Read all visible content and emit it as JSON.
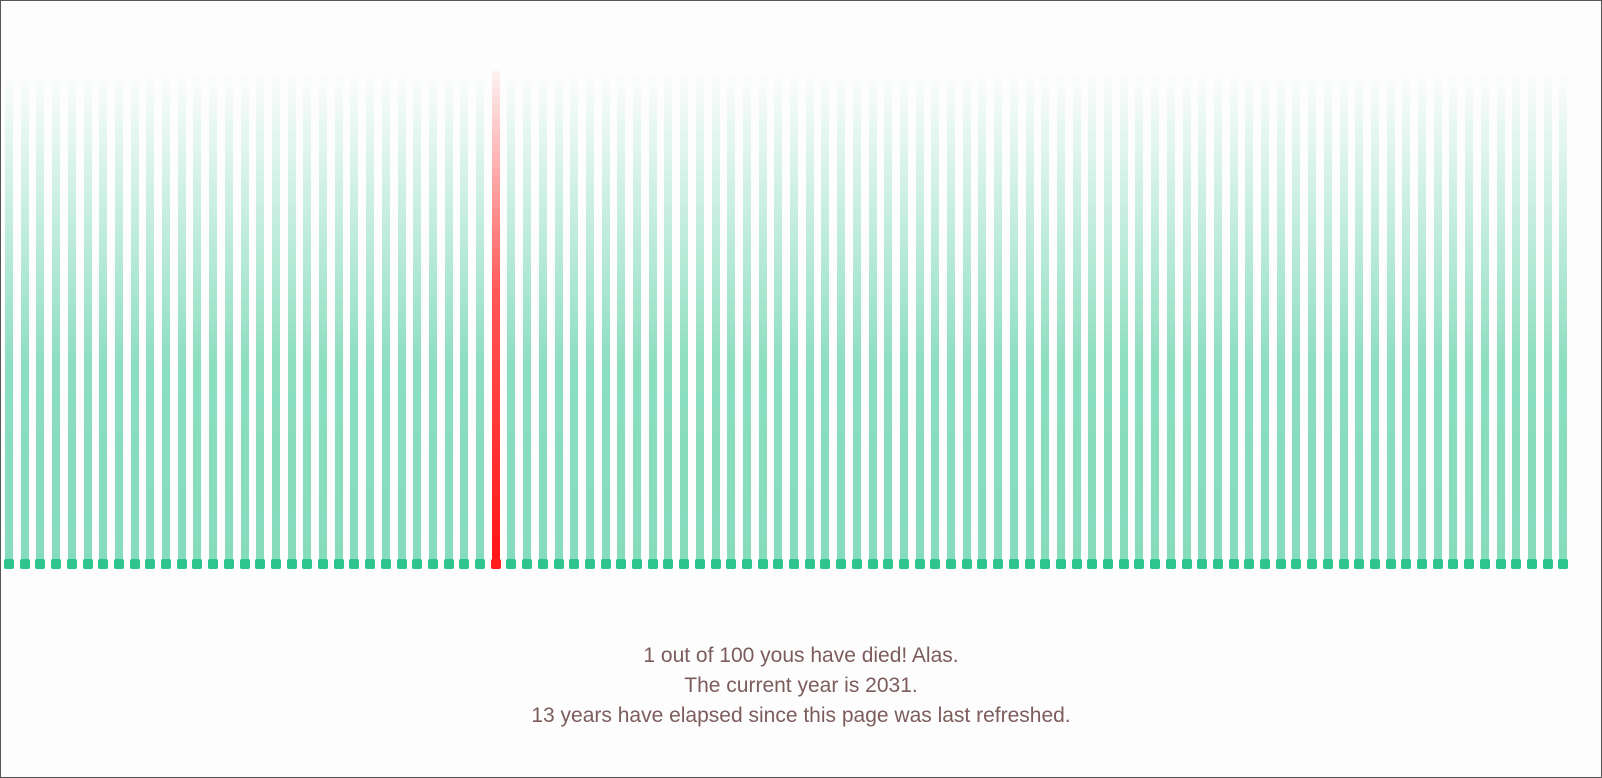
{
  "population": {
    "total": 100,
    "dead_indices": [
      31
    ]
  },
  "colors": {
    "alive": "#2ec48e",
    "dead": "#ff1e1e",
    "text": "#7d5c5c",
    "background": "#fdfdfd"
  },
  "message": {
    "line1": "1 out of 100 yous have died! Alas.",
    "line2": "The current year is 2031.",
    "line3": "13 years have elapsed since this page was last refreshed."
  }
}
